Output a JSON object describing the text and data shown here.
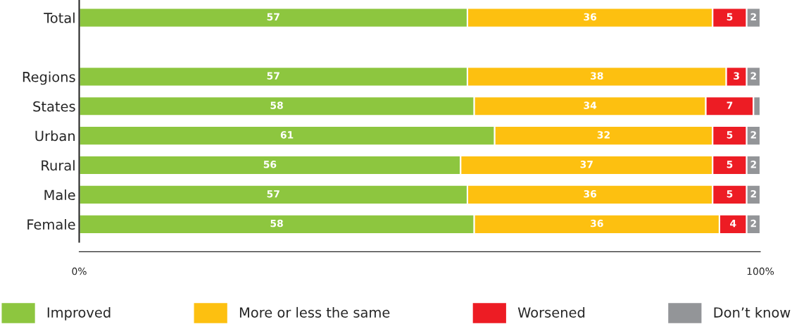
{
  "chart_data": {
    "type": "bar",
    "orientation": "horizontal",
    "stacked": true,
    "categories": [
      "Total",
      null,
      "Regions",
      "States",
      "Urban",
      "Rural",
      "Male",
      "Female"
    ],
    "series": [
      {
        "name": "Improved",
        "color": "#8dc63f",
        "values": [
          57,
          null,
          57,
          58,
          61,
          56,
          57,
          58
        ],
        "value_labels": [
          "57",
          null,
          "57",
          "58",
          "61",
          "56",
          "57",
          "58"
        ]
      },
      {
        "name": "More or less the same",
        "color": "#fdc010",
        "values": [
          36,
          null,
          38,
          34,
          32,
          37,
          36,
          36
        ],
        "value_labels": [
          "36",
          null,
          "38",
          "34",
          "32",
          "37",
          "36",
          "36"
        ]
      },
      {
        "name": "Worsened",
        "color": "#ed1c24",
        "values": [
          5,
          null,
          3,
          7,
          5,
          5,
          5,
          4
        ],
        "value_labels": [
          "5",
          null,
          "3",
          "7",
          "5",
          "5",
          "5",
          "4"
        ]
      },
      {
        "name": "Don’t know",
        "color": "#939598",
        "values": [
          2,
          null,
          2,
          1,
          2,
          2,
          2,
          2
        ],
        "value_labels": [
          "2",
          null,
          "2",
          null,
          "2",
          "2",
          "2",
          "2"
        ]
      }
    ],
    "xlim": [
      0,
      100
    ],
    "xticks": [
      {
        "value": 0,
        "label": "0%"
      },
      {
        "value": 100,
        "label": "100%"
      }
    ],
    "grid": false,
    "legend": "bottom"
  }
}
